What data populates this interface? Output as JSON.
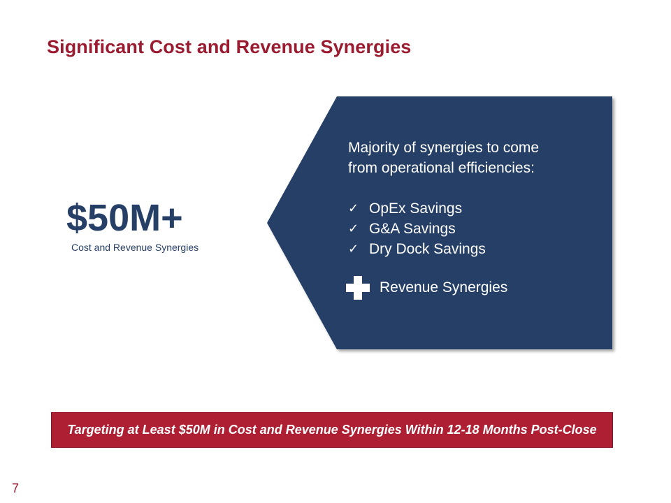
{
  "slide": {
    "title": "Significant Cost and Revenue Synergies",
    "headline_value": "$50M+",
    "headline_caption": "Cost and Revenue Synergies",
    "page_number": "7"
  },
  "panel": {
    "lead_line1": "Majority of synergies to come",
    "lead_line2": "from operational efficiencies:",
    "check_icon": "checkmark-icon",
    "items": [
      {
        "label": "OpEx Savings"
      },
      {
        "label": "G&A Savings"
      },
      {
        "label": "Dry Dock Savings"
      }
    ],
    "plus_icon": "plus-icon",
    "revenue_label": "Revenue Synergies"
  },
  "banner": {
    "text": "Targeting at Least $50M in Cost and Revenue Synergies Within 12-18 Months Post-Close"
  },
  "colors": {
    "title": "#9b1b30",
    "navy": "#253f66",
    "banner": "#ae1f33"
  }
}
